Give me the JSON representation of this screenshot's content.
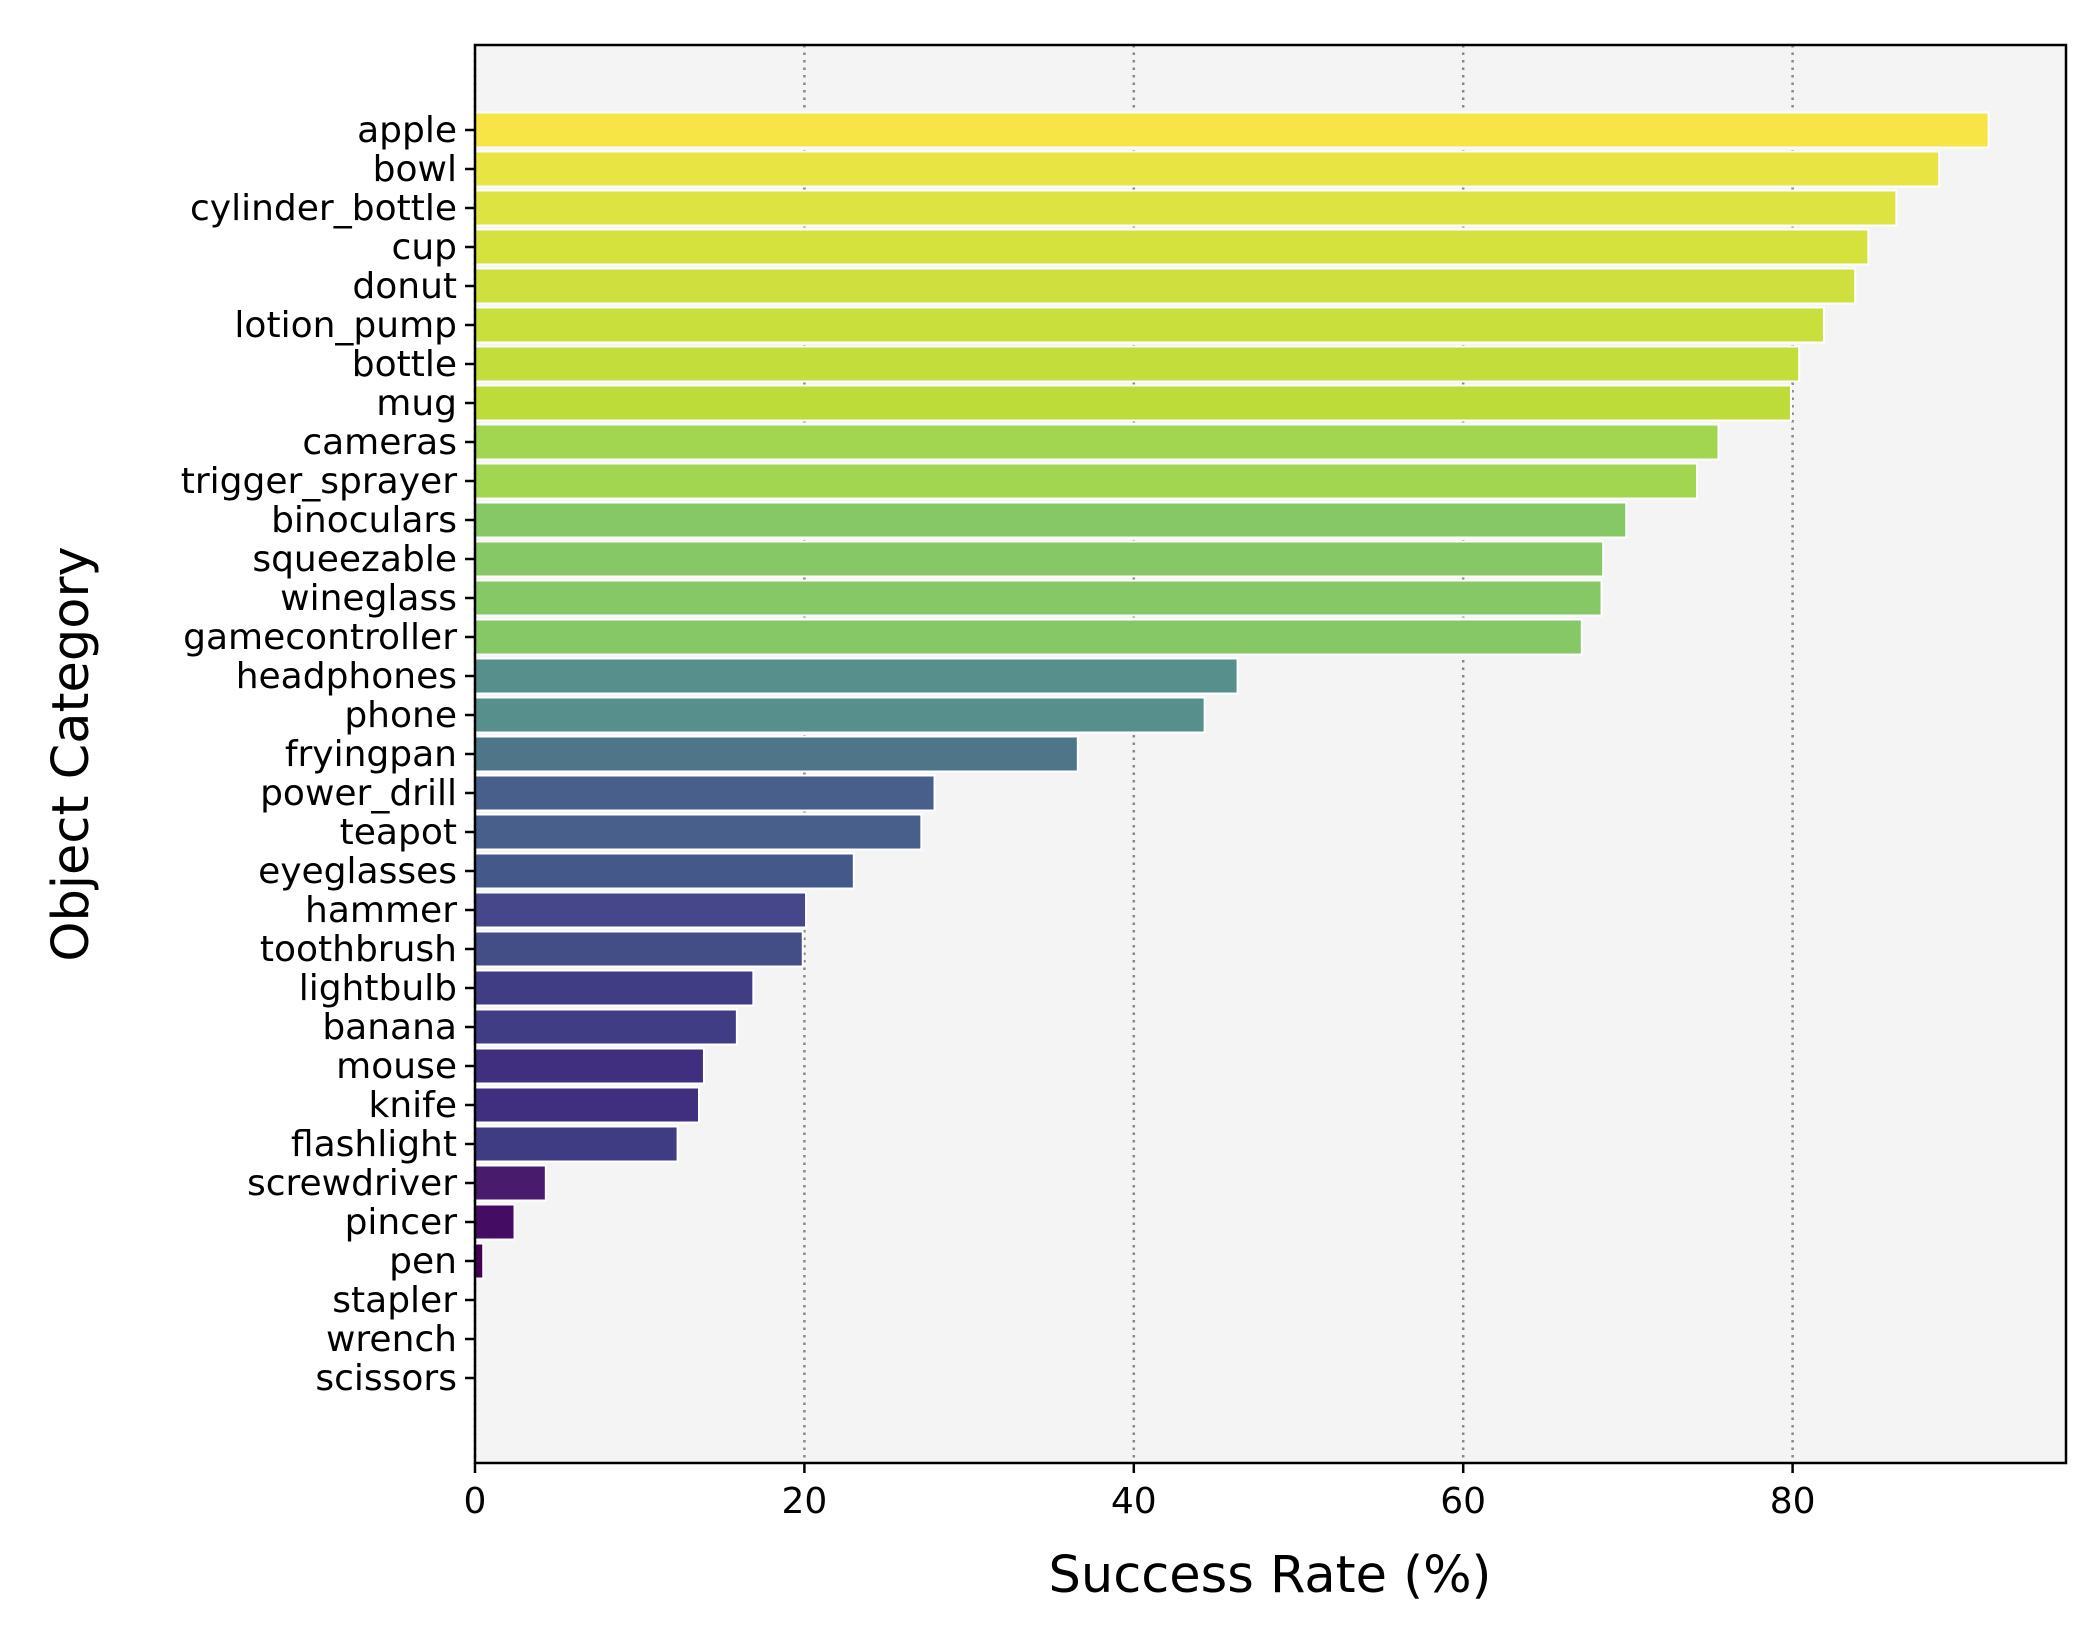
{
  "chart_data": {
    "type": "bar",
    "orientation": "horizontal",
    "title": "",
    "xlabel": "Success Rate (%)",
    "ylabel": "Object Category",
    "xlim": [
      0,
      96.6
    ],
    "xticks": [
      0,
      20,
      40,
      60,
      80
    ],
    "grid": "vertical dotted at x ticks",
    "background": "#f4f4f4",
    "categories": [
      "apple",
      "bowl",
      "cylinder_bottle",
      "cup",
      "donut",
      "lotion_pump",
      "bottle",
      "mug",
      "cameras",
      "trigger_sprayer",
      "binoculars",
      "squeezable",
      "wineglass",
      "gamecontroller",
      "headphones",
      "phone",
      "fryingpan",
      "power_drill",
      "teapot",
      "eyeglasses",
      "hammer",
      "toothbrush",
      "lightbulb",
      "banana",
      "mouse",
      "knife",
      "flashlight",
      "screwdriver",
      "pincer",
      "pen",
      "stapler",
      "wrench",
      "scissors"
    ],
    "values": [
      91.9,
      88.9,
      86.3,
      84.6,
      83.8,
      81.9,
      80.4,
      79.9,
      75.5,
      74.2,
      69.9,
      68.5,
      68.4,
      67.2,
      46.3,
      44.3,
      36.6,
      27.9,
      27.1,
      23.0,
      20.1,
      19.9,
      16.9,
      15.9,
      13.9,
      13.6,
      12.3,
      4.3,
      2.4,
      0.5,
      0.0,
      0.0,
      0.0
    ],
    "colors": [
      "#f6e544",
      "#e8e444",
      "#dde341",
      "#d5e23e",
      "#cfe03e",
      "#c9df3b",
      "#c3de3a",
      "#bddc39",
      "#a3d650",
      "#a3d650",
      "#86c766",
      "#86c766",
      "#86c766",
      "#86c766",
      "#568f8b",
      "#568f8b",
      "#4e7588",
      "#475f8a",
      "#475f8a",
      "#45588a",
      "#46468a",
      "#434e86",
      "#413d85",
      "#413d85",
      "#3f2f7e",
      "#3f2f7e",
      "#3f3c84",
      "#481b6d",
      "#450c63",
      "#440154",
      "#440154",
      "#440154",
      "#440154"
    ]
  }
}
